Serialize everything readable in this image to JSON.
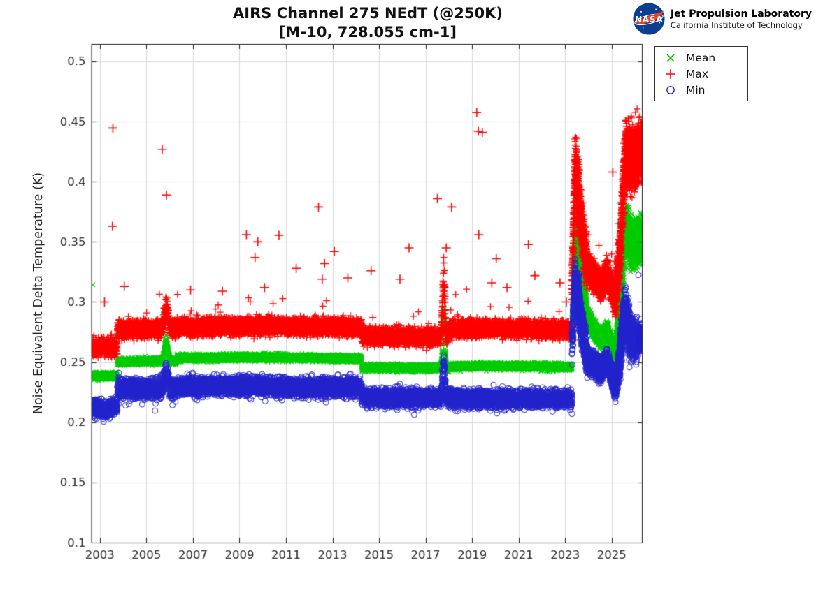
{
  "header": {
    "title": "AIRS Channel 275 NEdT (@250K)",
    "subtitle": "[M-10, 728.055 cm-1]"
  },
  "branding": {
    "org": "Jet Propulsion Laboratory",
    "sub": "California Institute of Technology",
    "insignia_text": "NASA",
    "colors": {
      "circle": "#0b3d91",
      "swoosh": "#fc3d21",
      "detail": "#ffffff"
    }
  },
  "legend": {
    "items": [
      {
        "label": "Mean",
        "marker": "x",
        "color": "#00cc00"
      },
      {
        "label": "Max",
        "marker": "+",
        "color": "#ff0000"
      },
      {
        "label": "Min",
        "marker": "o",
        "color": "#2222cc"
      }
    ]
  },
  "axes": {
    "x": {
      "min": 2002.66,
      "max": 2026.33,
      "ticks": [
        2003,
        2005,
        2007,
        2009,
        2011,
        2013,
        2015,
        2017,
        2019,
        2021,
        2023,
        2025
      ],
      "grid": true
    },
    "y": {
      "label": "Noise Equivalent Delta Temperature (K)",
      "min": 0.1,
      "max": 0.5145,
      "ticks": [
        0.1,
        0.15,
        0.2,
        0.25,
        0.3,
        0.35,
        0.4,
        0.45,
        0.5
      ],
      "labels": [
        "0.1",
        "0.15",
        "0.2",
        "0.25",
        "0.3",
        "0.35",
        "0.4",
        "0.45",
        "0.5"
      ],
      "grid": true
    }
  },
  "chart_data": {
    "type": "scatter",
    "title": "AIRS Channel 275 NEdT (@250K)",
    "subtitle": "[M-10, 728.055 cm-1]",
    "xlabel": "",
    "ylabel": "Noise Equivalent Delta Temperature (K)",
    "xlim": [
      2002.66,
      2026.33
    ],
    "ylim": [
      0.1,
      0.5145
    ],
    "legend_position": "top-right-outside",
    "grid": true,
    "sample_step_years": 0.00274,
    "dense_after": 2023.3,
    "seed": 11,
    "events": [
      {
        "center": 2005.85,
        "width": 0.075,
        "amplitude": {
          "Mean": 0.019,
          "Max": 0.021,
          "Min": 0.016
        }
      },
      {
        "center": 2017.78,
        "width": 0.048,
        "amplitude": {
          "Mean": 0.064,
          "Max": 0.06,
          "Min": 0.035
        }
      }
    ],
    "series": [
      {
        "name": "Mean",
        "marker": "x",
        "color": "#00cc00",
        "segments": [
          [
            2002.66,
            2003.75,
            0.2385,
            0.2385,
            0.0022
          ],
          [
            2003.75,
            2006.3,
            0.2502,
            0.2512,
            0.0022
          ],
          [
            2006.3,
            2010.0,
            0.2535,
            0.254,
            0.0022
          ],
          [
            2010.0,
            2014.25,
            0.254,
            0.253,
            0.0022
          ],
          [
            2014.25,
            2017.6,
            0.2455,
            0.245,
            0.0022
          ],
          [
            2017.6,
            2018.0,
            0.245,
            0.245,
            0.0024
          ],
          [
            2018.0,
            2020.0,
            0.2462,
            0.2468,
            0.0022
          ],
          [
            2020.0,
            2023.3,
            0.2468,
            0.2458,
            0.0022
          ],
          [
            2023.3,
            2023.42,
            0.272,
            0.352,
            0.013
          ],
          [
            2023.42,
            2023.62,
            0.352,
            0.33,
            0.018
          ],
          [
            2023.62,
            2023.95,
            0.325,
            0.287,
            0.013
          ],
          [
            2023.95,
            2024.55,
            0.287,
            0.268,
            0.006
          ],
          [
            2024.55,
            2024.8,
            0.268,
            0.277,
            0.006
          ],
          [
            2024.8,
            2025.15,
            0.277,
            0.255,
            0.006
          ],
          [
            2025.15,
            2025.35,
            0.255,
            0.298,
            0.01
          ],
          [
            2025.35,
            2025.6,
            0.298,
            0.36,
            0.016
          ],
          [
            2025.6,
            2025.85,
            0.36,
            0.347,
            0.018
          ],
          [
            2025.85,
            2026.3,
            0.347,
            0.352,
            0.015
          ]
        ],
        "outliers": [
          [
            2002.7,
            0.3145
          ]
        ]
      },
      {
        "name": "Max",
        "marker": "+",
        "color": "#ff0000",
        "tail": {
          "p": 0.012,
          "scale": 0.034,
          "dir": 1
        },
        "segments": [
          [
            2002.66,
            2003.75,
            0.2625,
            0.263,
            0.0055
          ],
          [
            2003.75,
            2006.3,
            0.277,
            0.278,
            0.0055
          ],
          [
            2006.3,
            2010.0,
            0.279,
            0.28,
            0.0055
          ],
          [
            2010.0,
            2014.25,
            0.28,
            0.279,
            0.0055
          ],
          [
            2014.25,
            2017.6,
            0.2715,
            0.271,
            0.0055
          ],
          [
            2017.6,
            2018.0,
            0.272,
            0.272,
            0.006
          ],
          [
            2018.0,
            2020.0,
            0.2775,
            0.278,
            0.0055
          ],
          [
            2020.0,
            2023.3,
            0.278,
            0.276,
            0.0055
          ],
          [
            2023.3,
            2023.42,
            0.315,
            0.408,
            0.016
          ],
          [
            2023.42,
            2023.62,
            0.408,
            0.382,
            0.022
          ],
          [
            2023.62,
            2023.95,
            0.375,
            0.328,
            0.016
          ],
          [
            2023.95,
            2024.55,
            0.328,
            0.314,
            0.009
          ],
          [
            2024.55,
            2024.8,
            0.314,
            0.323,
            0.009
          ],
          [
            2024.8,
            2025.15,
            0.323,
            0.302,
            0.008
          ],
          [
            2025.15,
            2025.35,
            0.302,
            0.34,
            0.013
          ],
          [
            2025.35,
            2025.6,
            0.34,
            0.424,
            0.018
          ],
          [
            2025.6,
            2025.85,
            0.424,
            0.42,
            0.02
          ],
          [
            2025.85,
            2026.3,
            0.416,
            0.426,
            0.018
          ]
        ],
        "outliers": [
          [
            2003.2,
            0.3
          ],
          [
            2003.54,
            0.363
          ],
          [
            2003.56,
            0.4446
          ],
          [
            2004.05,
            0.313
          ],
          [
            2005.68,
            0.427
          ],
          [
            2005.86,
            0.389
          ],
          [
            2006.9,
            0.31
          ],
          [
            2008.27,
            0.309
          ],
          [
            2009.3,
            0.356
          ],
          [
            2009.67,
            0.337
          ],
          [
            2009.79,
            0.35
          ],
          [
            2010.08,
            0.312
          ],
          [
            2010.7,
            0.3555
          ],
          [
            2011.44,
            0.328
          ],
          [
            2012.4,
            0.379
          ],
          [
            2012.56,
            0.319
          ],
          [
            2012.66,
            0.332
          ],
          [
            2013.08,
            0.342
          ],
          [
            2013.66,
            0.32
          ],
          [
            2014.66,
            0.326
          ],
          [
            2015.9,
            0.319
          ],
          [
            2016.29,
            0.345
          ],
          [
            2017.51,
            0.386
          ],
          [
            2017.89,
            0.345
          ],
          [
            2018.12,
            0.379
          ],
          [
            2019.2,
            0.4575
          ],
          [
            2019.27,
            0.442
          ],
          [
            2019.44,
            0.441
          ],
          [
            2019.29,
            0.356
          ],
          [
            2019.85,
            0.316
          ],
          [
            2020.04,
            0.336
          ],
          [
            2020.5,
            0.312
          ],
          [
            2021.42,
            0.3477
          ],
          [
            2021.7,
            0.322
          ],
          [
            2022.78,
            0.316
          ],
          [
            2023.05,
            0.3
          ],
          [
            2025.05,
            0.408
          ]
        ]
      },
      {
        "name": "Min",
        "marker": "o",
        "color": "#2222cc",
        "tail": {
          "p": 0.008,
          "scale": 0.013,
          "dir": -1
        },
        "segments": [
          [
            2002.66,
            2003.1,
            0.212,
            0.212,
            0.0055
          ],
          [
            2003.1,
            2003.45,
            0.2105,
            0.2105,
            0.0055
          ],
          [
            2003.45,
            2003.75,
            0.213,
            0.213,
            0.0055
          ],
          [
            2003.75,
            2006.3,
            0.2275,
            0.2285,
            0.0065
          ],
          [
            2006.3,
            2010.0,
            0.23,
            0.23,
            0.006
          ],
          [
            2010.0,
            2014.25,
            0.2295,
            0.229,
            0.006
          ],
          [
            2014.25,
            2017.6,
            0.2205,
            0.22,
            0.0058
          ],
          [
            2017.6,
            2018.0,
            0.22,
            0.22,
            0.0058
          ],
          [
            2018.0,
            2023.3,
            0.2195,
            0.2195,
            0.0058
          ],
          [
            2023.3,
            2023.42,
            0.262,
            0.318,
            0.013
          ],
          [
            2023.42,
            2023.62,
            0.318,
            0.295,
            0.016
          ],
          [
            2023.62,
            2023.95,
            0.29,
            0.253,
            0.012
          ],
          [
            2023.95,
            2024.55,
            0.253,
            0.244,
            0.0075
          ],
          [
            2024.55,
            2024.8,
            0.244,
            0.253,
            0.0065
          ],
          [
            2024.8,
            2025.15,
            0.253,
            0.229,
            0.0065
          ],
          [
            2025.15,
            2025.35,
            0.229,
            0.252,
            0.009
          ],
          [
            2025.35,
            2025.55,
            0.252,
            0.296,
            0.013
          ],
          [
            2025.55,
            2025.78,
            0.296,
            0.272,
            0.015
          ],
          [
            2025.78,
            2026.08,
            0.272,
            0.267,
            0.012
          ],
          [
            2026.08,
            2026.3,
            0.267,
            0.272,
            0.008
          ]
        ],
        "outliers": [
          [
            2026.15,
            0.3225
          ]
        ]
      }
    ]
  }
}
